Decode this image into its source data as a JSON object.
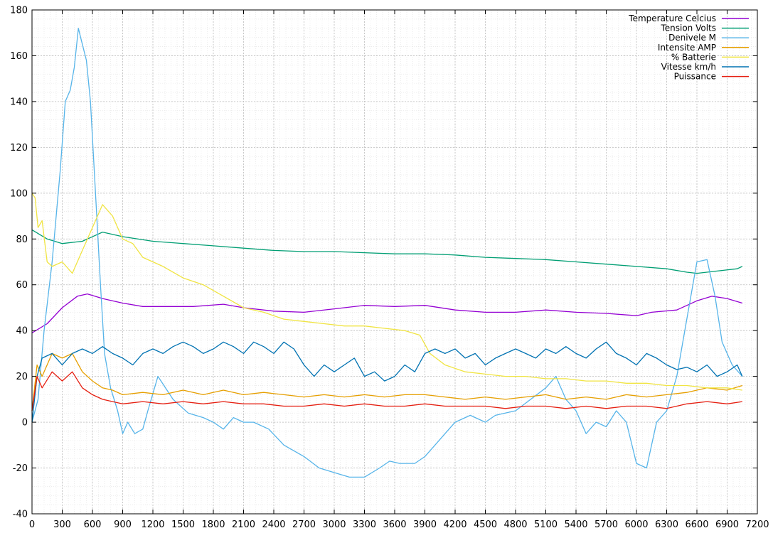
{
  "chart_data": {
    "type": "line",
    "title": "",
    "xlabel": "",
    "ylabel": "",
    "xlim": [
      0,
      7200
    ],
    "ylim": [
      -40,
      180
    ],
    "x_ticks": [
      0,
      300,
      600,
      900,
      1200,
      1500,
      1800,
      2100,
      2400,
      2700,
      3000,
      3300,
      3600,
      3900,
      4200,
      4500,
      4800,
      5100,
      5400,
      5700,
      6000,
      6300,
      6600,
      6900,
      7200
    ],
    "y_ticks": [
      -40,
      -20,
      0,
      20,
      40,
      60,
      80,
      100,
      120,
      140,
      160,
      180
    ],
    "grid": true,
    "legend_position": "top-right",
    "series": [
      {
        "name": "Temperature Celcius",
        "color": "#9400d3",
        "x": [
          0,
          150,
          300,
          450,
          550,
          700,
          900,
          1100,
          1300,
          1600,
          1900,
          2100,
          2400,
          2700,
          3000,
          3300,
          3600,
          3900,
          4200,
          4500,
          4800,
          5100,
          5400,
          5700,
          6000,
          6150,
          6400,
          6600,
          6750,
          6900,
          7050
        ],
        "y": [
          39,
          43,
          50,
          55,
          56,
          54,
          52,
          50.5,
          50.5,
          50.5,
          51.5,
          50,
          48.5,
          48,
          49.5,
          51,
          50.5,
          51,
          49,
          48,
          48,
          49,
          48,
          47.5,
          46.5,
          48,
          49,
          53,
          55,
          54,
          52
        ]
      },
      {
        "name": "Tension Volts",
        "color": "#009e73",
        "x": [
          0,
          150,
          300,
          500,
          700,
          900,
          1200,
          1500,
          1800,
          2100,
          2400,
          2700,
          3000,
          3300,
          3600,
          3900,
          4200,
          4500,
          4800,
          5100,
          5400,
          5700,
          6000,
          6300,
          6500,
          6600,
          6800,
          7000,
          7050
        ],
        "y": [
          84,
          80,
          78,
          79,
          83,
          81,
          79,
          78,
          77,
          76,
          75,
          74.5,
          74.5,
          74,
          73.5,
          73.5,
          73,
          72,
          71.5,
          71,
          70,
          69,
          68,
          67,
          65.5,
          65,
          66,
          67,
          68
        ]
      },
      {
        "name": "Denivele M",
        "color": "#56b4e9",
        "x": [
          0,
          60,
          120,
          200,
          280,
          330,
          380,
          420,
          460,
          500,
          540,
          580,
          630,
          680,
          720,
          780,
          850,
          900,
          950,
          1020,
          1100,
          1150,
          1250,
          1400,
          1550,
          1700,
          1800,
          1900,
          2000,
          2100,
          2200,
          2350,
          2500,
          2700,
          2850,
          3000,
          3150,
          3300,
          3450,
          3550,
          3650,
          3800,
          3900,
          4000,
          4100,
          4200,
          4350,
          4500,
          4600,
          4800,
          4950,
          5100,
          5200,
          5300,
          5400,
          5500,
          5600,
          5700,
          5800,
          5900,
          6000,
          6100,
          6200,
          6300,
          6400,
          6500,
          6600,
          6700,
          6780,
          6850,
          6900,
          6950,
          7050
        ],
        "y": [
          0,
          10,
          40,
          70,
          110,
          140,
          145,
          155,
          172,
          165,
          158,
          140,
          100,
          60,
          30,
          15,
          5,
          -5,
          0,
          -5,
          -3,
          5,
          20,
          10,
          4,
          2,
          0,
          -3,
          2,
          0,
          0,
          -3,
          -10,
          -15,
          -20,
          -22,
          -24,
          -24,
          -20,
          -17,
          -18,
          -18,
          -15,
          -10,
          -5,
          0,
          3,
          0,
          3,
          5,
          10,
          15,
          20,
          10,
          5,
          -5,
          0,
          -2,
          5,
          0,
          -18,
          -20,
          0,
          5,
          20,
          45,
          70,
          71,
          55,
          35,
          30,
          25,
          20
        ]
      },
      {
        "name": "Intensite AMP",
        "color": "#e69f00",
        "x": [
          0,
          50,
          100,
          200,
          300,
          400,
          500,
          600,
          700,
          800,
          900,
          1100,
          1300,
          1500,
          1700,
          1900,
          2100,
          2300,
          2500,
          2700,
          2900,
          3100,
          3300,
          3500,
          3700,
          3900,
          4100,
          4300,
          4500,
          4700,
          4900,
          5100,
          5300,
          5500,
          5700,
          5900,
          6100,
          6300,
          6500,
          6700,
          6900,
          7050
        ],
        "y": [
          5,
          25,
          20,
          30,
          28,
          30,
          22,
          18,
          15,
          14,
          12,
          13,
          12,
          14,
          12,
          14,
          12,
          13,
          12,
          11,
          12,
          11,
          12,
          11,
          12,
          12,
          11,
          10,
          11,
          10,
          11,
          12,
          10,
          11,
          10,
          12,
          11,
          12,
          13,
          15,
          14,
          16
        ]
      },
      {
        "name": "% Batterie",
        "color": "#f0e442",
        "x": [
          0,
          30,
          60,
          100,
          150,
          200,
          300,
          400,
          500,
          600,
          700,
          800,
          900,
          1000,
          1100,
          1200,
          1300,
          1500,
          1700,
          1900,
          2100,
          2300,
          2500,
          2700,
          2900,
          3100,
          3300,
          3500,
          3700,
          3850,
          3950,
          4100,
          4300,
          4500,
          4700,
          4900,
          5100,
          5300,
          5500,
          5700,
          5900,
          6100,
          6300,
          6500,
          6700,
          6900,
          7050
        ],
        "y": [
          100,
          98,
          85,
          88,
          70,
          68,
          70,
          65,
          75,
          85,
          95,
          90,
          80,
          78,
          72,
          70,
          68,
          63,
          60,
          55,
          50,
          48,
          45,
          44,
          43,
          42,
          42,
          41,
          40,
          38,
          30,
          25,
          22,
          21,
          20,
          20,
          19,
          19,
          18,
          18,
          17,
          17,
          16,
          16,
          15,
          15,
          14
        ]
      },
      {
        "name": "Vitesse km/h",
        "color": "#0072b2",
        "x": [
          0,
          50,
          100,
          200,
          300,
          400,
          500,
          600,
          700,
          800,
          900,
          1000,
          1100,
          1200,
          1300,
          1400,
          1500,
          1600,
          1700,
          1800,
          1900,
          2000,
          2100,
          2200,
          2300,
          2400,
          2500,
          2600,
          2700,
          2800,
          2900,
          3000,
          3100,
          3200,
          3300,
          3400,
          3500,
          3600,
          3700,
          3800,
          3900,
          4000,
          4100,
          4200,
          4300,
          4400,
          4500,
          4600,
          4700,
          4800,
          4900,
          5000,
          5100,
          5200,
          5300,
          5400,
          5500,
          5600,
          5700,
          5800,
          5900,
          6000,
          6100,
          6200,
          6300,
          6400,
          6500,
          6600,
          6700,
          6800,
          6900,
          7000,
          7050
        ],
        "y": [
          0,
          20,
          28,
          30,
          25,
          30,
          32,
          30,
          33,
          30,
          28,
          25,
          30,
          32,
          30,
          33,
          35,
          33,
          30,
          32,
          35,
          33,
          30,
          35,
          33,
          30,
          35,
          32,
          25,
          20,
          25,
          22,
          25,
          28,
          20,
          22,
          18,
          20,
          25,
          22,
          30,
          32,
          30,
          32,
          28,
          30,
          25,
          28,
          30,
          32,
          30,
          28,
          32,
          30,
          33,
          30,
          28,
          32,
          35,
          30,
          28,
          25,
          30,
          28,
          25,
          23,
          24,
          22,
          25,
          20,
          22,
          25,
          20
        ]
      },
      {
        "name": "Puissance",
        "color": "#e51e10",
        "x": [
          0,
          50,
          100,
          200,
          300,
          400,
          500,
          600,
          700,
          800,
          900,
          1100,
          1300,
          1500,
          1700,
          1900,
          2100,
          2300,
          2500,
          2700,
          2900,
          3100,
          3300,
          3500,
          3700,
          3900,
          4100,
          4300,
          4500,
          4700,
          4900,
          5100,
          5300,
          5500,
          5700,
          5900,
          6100,
          6300,
          6500,
          6700,
          6900,
          7050
        ],
        "y": [
          5,
          20,
          15,
          22,
          18,
          22,
          15,
          12,
          10,
          9,
          8,
          9,
          8,
          9,
          8,
          9,
          8,
          8,
          7,
          7,
          8,
          7,
          8,
          7,
          7,
          8,
          7,
          7,
          7,
          6,
          7,
          7,
          6,
          7,
          6,
          7,
          7,
          6,
          8,
          9,
          8,
          9
        ]
      }
    ]
  }
}
